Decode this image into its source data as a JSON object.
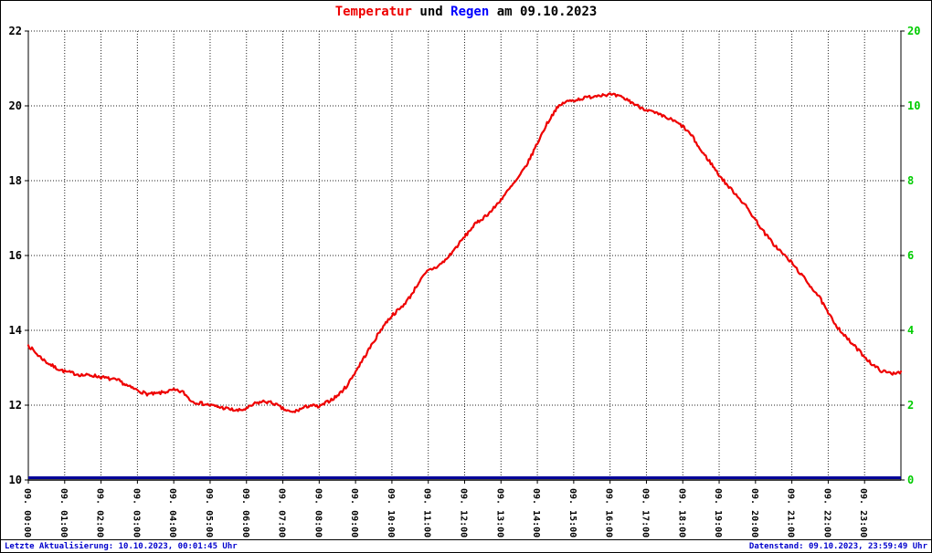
{
  "title": {
    "temp_label": "Temperatur",
    "mid": " und ",
    "rain_label": "Regen",
    "suffix": " am 09.10.2023"
  },
  "footer": {
    "left": "Letzte Aktualisierung: 10.10.2023, 00:01:45 Uhr",
    "right": "Datenstand: 09.10.2023, 23:59:49 Uhr"
  },
  "colors": {
    "temperature_line": "#ee0000",
    "temperature_label": "#ee0000",
    "rain_line": "#000099",
    "rain_label": "#0000ff",
    "right_axis_text": "#00cc00",
    "left_axis_text": "#000000",
    "grid": "#222222",
    "footer_text": "#0000cc"
  },
  "chart_data": {
    "type": "line",
    "title": "Temperatur und Regen am 09.10.2023",
    "xlabel": "",
    "grid": true,
    "legend_position": "none",
    "x_tick_labels": [
      "09. 00:00",
      "09. 01:00",
      "09. 02:00",
      "09. 03:00",
      "09. 04:00",
      "09. 05:00",
      "09. 06:00",
      "09. 07:00",
      "09. 08:00",
      "09. 09:00",
      "09. 10:00",
      "09. 11:00",
      "09. 12:00",
      "09. 13:00",
      "09. 14:00",
      "09. 15:00",
      "09. 16:00",
      "09. 17:00",
      "09. 18:00",
      "09. 19:00",
      "09. 20:00",
      "09. 21:00",
      "09. 22:00",
      "09. 23:00"
    ],
    "y_left": {
      "min": 10,
      "max": 22,
      "ticks": [
        22,
        20,
        18,
        16,
        14,
        12,
        10
      ]
    },
    "y_right": {
      "tick_labels": [
        "20",
        "10",
        "8",
        "6",
        "4",
        "2",
        "0"
      ]
    },
    "series": [
      {
        "name": "Temperatur",
        "axis": "left",
        "color": "#ee0000",
        "interval_minutes": 15,
        "values": [
          13.6,
          13.35,
          13.15,
          13.0,
          12.9,
          12.85,
          12.8,
          12.8,
          12.75,
          12.7,
          12.65,
          12.5,
          12.4,
          12.3,
          12.3,
          12.35,
          12.4,
          12.35,
          12.1,
          12.05,
          12.0,
          11.95,
          11.9,
          11.85,
          11.9,
          12.05,
          12.1,
          12.05,
          11.9,
          11.8,
          11.9,
          12.0,
          11.95,
          12.1,
          12.25,
          12.5,
          12.9,
          13.3,
          13.7,
          14.1,
          14.4,
          14.6,
          14.9,
          15.3,
          15.6,
          15.7,
          15.9,
          16.2,
          16.5,
          16.8,
          17.0,
          17.2,
          17.5,
          17.8,
          18.1,
          18.5,
          19.0,
          19.5,
          19.9,
          20.1,
          20.15,
          20.2,
          20.25,
          20.3,
          20.3,
          20.25,
          20.15,
          20.0,
          19.9,
          19.8,
          19.7,
          19.6,
          19.45,
          19.2,
          18.8,
          18.5,
          18.15,
          17.85,
          17.6,
          17.3,
          16.95,
          16.6,
          16.3,
          16.05,
          15.8,
          15.5,
          15.2,
          14.9,
          14.45,
          14.1,
          13.8,
          13.55,
          13.3,
          13.05,
          12.9,
          12.85,
          12.9
        ]
      },
      {
        "name": "Regen",
        "axis": "right",
        "color": "#000099",
        "constant_value": 0
      }
    ]
  }
}
